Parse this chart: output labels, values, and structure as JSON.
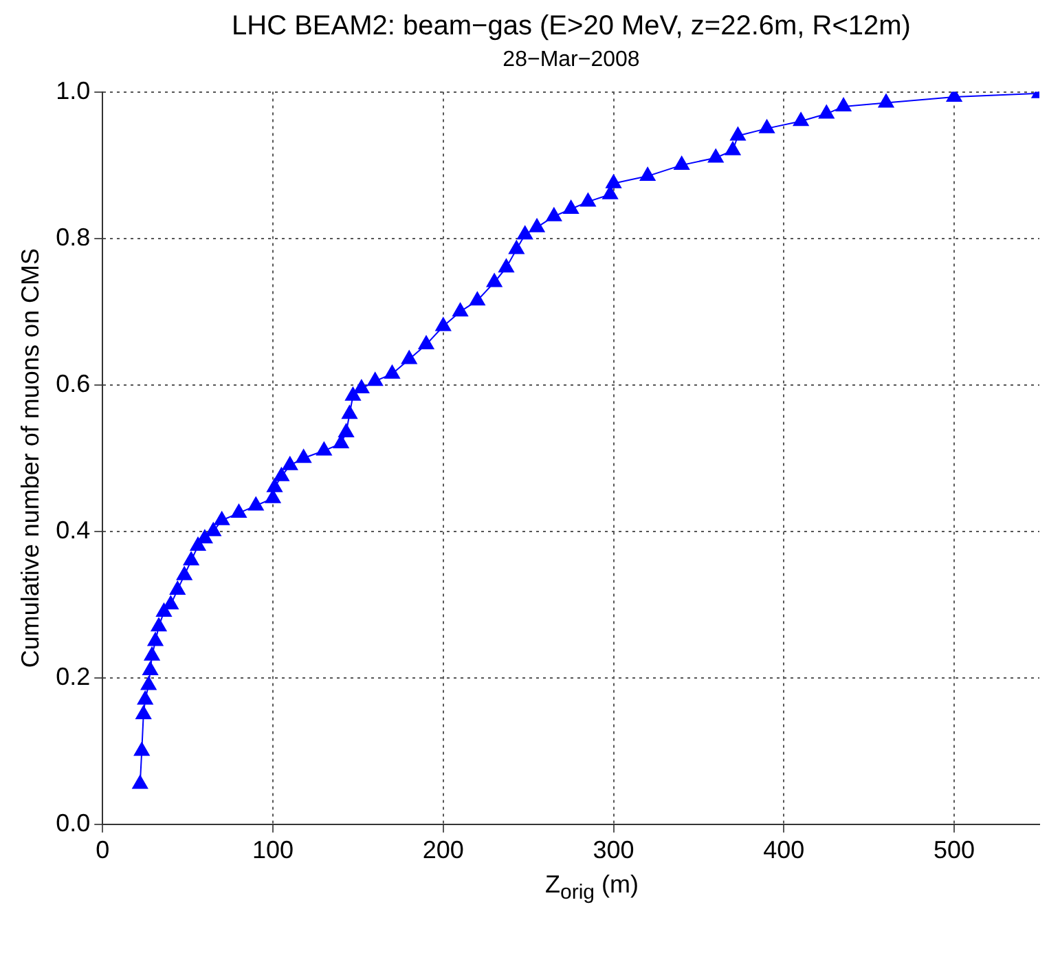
{
  "chart_data": {
    "type": "line",
    "title": "LHC BEAM2: beam−gas (E>20 MeV, z=22.6m, R<12m)",
    "subtitle": "28−Mar−2008",
    "xlabel": "Z$_{orig}$ (m)",
    "ylabel": "Cumulative number of muons on CMS",
    "x": [
      22,
      23,
      24,
      25,
      27,
      28,
      29,
      31,
      33,
      36,
      40,
      44,
      48,
      52,
      56,
      60,
      65,
      70,
      80,
      90,
      100,
      101,
      105,
      110,
      118,
      130,
      140,
      143,
      145,
      147,
      152,
      160,
      170,
      180,
      190,
      200,
      210,
      220,
      230,
      237,
      243,
      248,
      255,
      265,
      275,
      285,
      298,
      300,
      320,
      340,
      360,
      370,
      373,
      390,
      410,
      425,
      435,
      460,
      500,
      550
    ],
    "series": [
      {
        "color": "#0000ff",
        "values": [
          0.055,
          0.1,
          0.15,
          0.17,
          0.19,
          0.21,
          0.23,
          0.25,
          0.27,
          0.29,
          0.3,
          0.32,
          0.34,
          0.36,
          0.38,
          0.39,
          0.4,
          0.415,
          0.425,
          0.435,
          0.445,
          0.46,
          0.475,
          0.49,
          0.5,
          0.51,
          0.52,
          0.535,
          0.56,
          0.585,
          0.595,
          0.605,
          0.615,
          0.635,
          0.655,
          0.68,
          0.7,
          0.715,
          0.74,
          0.76,
          0.785,
          0.805,
          0.815,
          0.83,
          0.84,
          0.85,
          0.86,
          0.875,
          0.885,
          0.9,
          0.91,
          0.92,
          0.94,
          0.95,
          0.96,
          0.97,
          0.98,
          0.985,
          0.993,
          0.998
        ]
      }
    ],
    "xlim": [
      0,
      550
    ],
    "xticks": [
      0,
      100,
      200,
      300,
      400,
      500
    ],
    "ylim": [
      0,
      1
    ],
    "yticks": [
      {
        "value": 0,
        "label": "0.0"
      },
      {
        "value": 0.2,
        "label": "0.2"
      },
      {
        "value": 0.4,
        "label": "0.4"
      },
      {
        "value": 0.6,
        "label": "0.6"
      },
      {
        "value": 0.8,
        "label": "0.8"
      },
      {
        "value": 1,
        "label": "1.0"
      }
    ],
    "grid": true,
    "legend": false,
    "marker": "triangle",
    "line_style": "solid"
  }
}
